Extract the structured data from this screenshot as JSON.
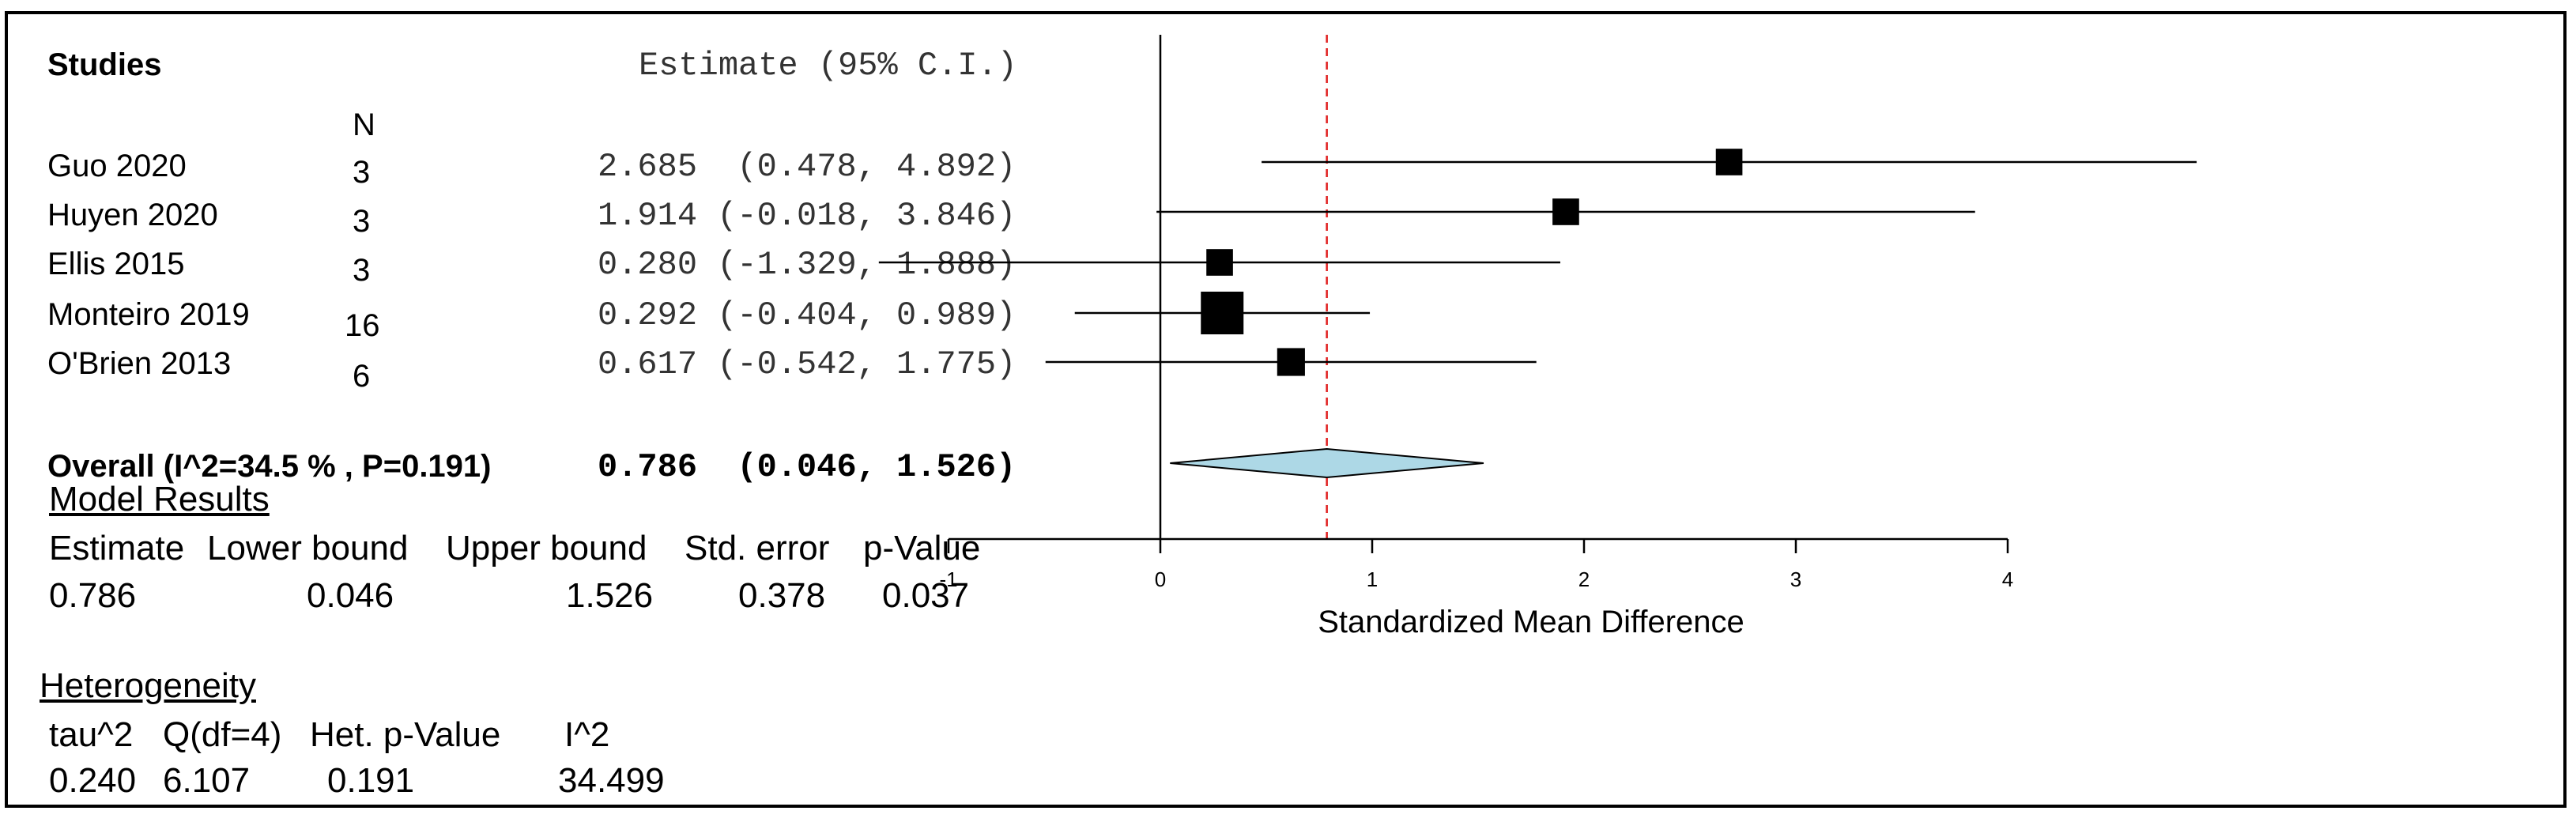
{
  "header": {
    "studies_label": "Studies",
    "estimate_label": "Estimate (95% C.I.)",
    "n_label": "N"
  },
  "studies": [
    {
      "name": "Guo 2020",
      "n": "3",
      "estimate_text": "2.685  (0.478, 4.892)"
    },
    {
      "name": "Huyen 2020",
      "n": "3",
      "estimate_text": "1.914 (-0.018, 3.846)"
    },
    {
      "name": "Ellis 2015",
      "n": "3",
      "estimate_text": "0.280 (-1.329, 1.888)"
    },
    {
      "name": "Monteiro 2019",
      "n": "16",
      "estimate_text": "0.292 (-0.404, 0.989)"
    },
    {
      "name": "O'Brien 2013",
      "n": "6",
      "estimate_text": "0.617 (-0.542, 1.775)"
    }
  ],
  "overall": {
    "label": "Overall (I^2=34.5 % , P=0.191)",
    "estimate_text": "0.786  (0.046, 1.526)"
  },
  "model_results": {
    "title": "Model Results",
    "headers": [
      "Estimate",
      "Lower bound",
      "Upper bound",
      "Std. error",
      "p-Value"
    ],
    "values": [
      "0.786",
      "0.046",
      "1.526",
      "0.378",
      "0.037"
    ]
  },
  "heterogeneity": {
    "title": "Heterogeneity",
    "headers": [
      "tau^2",
      "Q(df=4)",
      "Het. p-Value",
      "I^2"
    ],
    "values": [
      "0.240",
      "6.107",
      "0.191",
      "34.499"
    ]
  },
  "chart_data": {
    "type": "forest",
    "xlabel": "Standardized Mean Difference",
    "xlim": [
      -1,
      4
    ],
    "ticks": [
      "-1",
      "0",
      "1",
      "2",
      "3",
      "4"
    ],
    "null_line": 0,
    "reference_line": 0.786,
    "studies": [
      {
        "name": "Guo 2020",
        "estimate": 2.685,
        "lower": 0.478,
        "upper": 4.892,
        "n": 3
      },
      {
        "name": "Huyen 2020",
        "estimate": 1.914,
        "lower": -0.018,
        "upper": 3.846,
        "n": 3
      },
      {
        "name": "Ellis 2015",
        "estimate": 0.28,
        "lower": -1.329,
        "upper": 1.888,
        "n": 3
      },
      {
        "name": "Monteiro 2019",
        "estimate": 0.292,
        "lower": -0.404,
        "upper": 0.989,
        "n": 16
      },
      {
        "name": "O'Brien 2013",
        "estimate": 0.617,
        "lower": -0.542,
        "upper": 1.775,
        "n": 6
      }
    ],
    "overall": {
      "estimate": 0.786,
      "lower": 0.046,
      "upper": 1.526
    },
    "colors": {
      "diamond": "#add8e6",
      "reference": "#e02020",
      "marker": "#000000"
    }
  }
}
